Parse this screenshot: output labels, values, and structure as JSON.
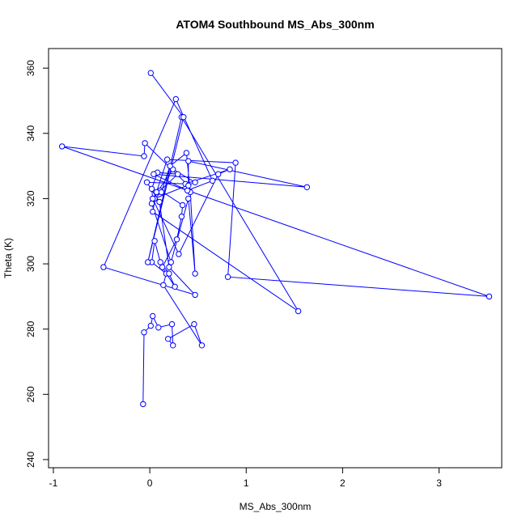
{
  "chart_data": {
    "type": "line",
    "title": "ATOM4 Southbound MS_Abs_300nm",
    "xlabel": "MS_Abs_300nm",
    "ylabel": "Theta (K)",
    "xlim": [
      -1.05,
      3.65
    ],
    "ylim": [
      237.5,
      366
    ],
    "x_ticks": [
      -1,
      0,
      1,
      2,
      3
    ],
    "y_ticks": [
      240,
      260,
      280,
      300,
      320,
      340,
      360
    ],
    "grid": false,
    "legend": "none",
    "colors": {
      "series": "#0000ff"
    },
    "series": [
      {
        "x": [
          -0.07,
          -0.06,
          0.01,
          0.03,
          0.09,
          0.23,
          0.24,
          0.19,
          0.46,
          0.54,
          0.14,
          0.17,
          0.02,
          0.05,
          0.11,
          0.2,
          0.26,
          0.13,
          0.28,
          0.33,
          0.34,
          0.11,
          0.29,
          0.08,
          0.02,
          0.03,
          0.24,
          0.47,
          0.05,
          0.12,
          0.21,
          0.38,
          0.42,
          0.47,
          0.4,
          0.22,
          0.02,
          0.03,
          0.3,
          0.71,
          0.83,
          0.37,
          -0.03,
          0.1,
          0.2,
          0.47,
          -0.48,
          0.27,
          0.65,
          0.39,
          0.04,
          1.63,
          0.4,
          0.4,
          -0.05,
          -0.06,
          -0.91,
          3.52,
          0.81,
          0.89,
          0.18,
          0.07,
          0.03,
          1.54,
          0.33,
          -0.02,
          0.35,
          0.01
        ],
        "y": [
          257,
          279,
          281,
          284,
          280.5,
          281.5,
          275,
          277,
          281.5,
          275,
          293.5,
          297,
          300.5,
          307,
          300.5,
          297,
          293,
          299,
          307.5,
          314.5,
          318,
          322.5,
          327.5,
          328,
          323,
          320,
          329,
          325,
          320,
          322,
          330,
          334,
          322,
          297,
          320,
          300.5,
          318.5,
          320,
          303,
          327.5,
          329,
          324.5,
          325,
          319,
          299,
          290.5,
          299,
          350.5,
          325.5,
          322.5,
          327.5,
          323.5,
          331.5,
          324,
          337,
          333,
          336,
          290,
          296,
          331,
          332,
          322,
          316,
          285.5,
          345,
          300.5,
          345,
          358.5
        ]
      }
    ]
  }
}
